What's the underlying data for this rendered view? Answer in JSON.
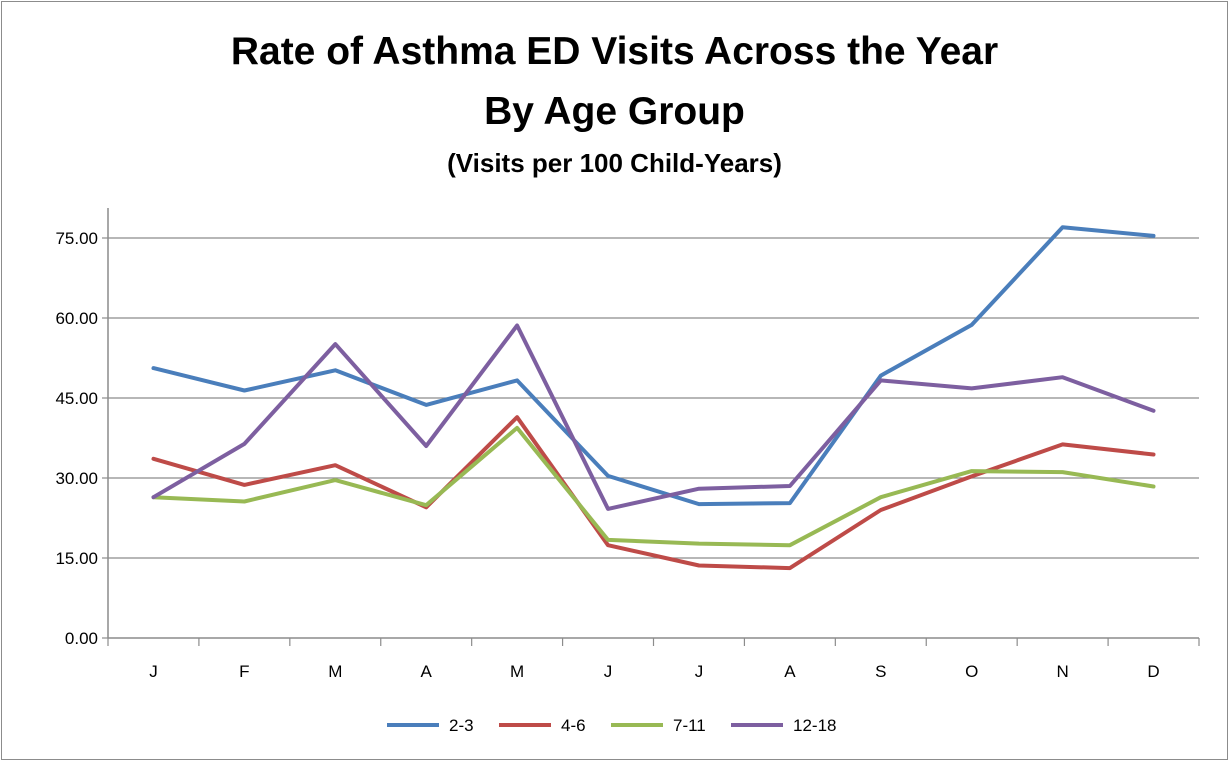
{
  "chart_data": {
    "type": "line",
    "title": "Rate of Asthma ED Visits Across the Year",
    "subtitle_1": "By Age Group",
    "subtitle_2": "(Visits per 100 Child-Years)",
    "categories": [
      "J",
      "F",
      "M",
      "A",
      "M",
      "J",
      "J",
      "A",
      "S",
      "O",
      "N",
      "D"
    ],
    "yticks": [
      "0.00",
      "15.00",
      "30.00",
      "45.00",
      "60.00",
      "75.00"
    ],
    "ylim": [
      0,
      75
    ],
    "grid": true,
    "legend_position": "bottom",
    "series": [
      {
        "name": "2-3",
        "color": "#4a7ebb",
        "values": [
          50.6,
          46.4,
          50.2,
          43.7,
          48.3,
          30.4,
          25.1,
          25.3,
          49.2,
          58.7,
          77.0,
          75.4
        ]
      },
      {
        "name": "4-6",
        "color": "#be4b48",
        "values": [
          33.6,
          28.7,
          32.4,
          24.5,
          41.4,
          17.4,
          13.6,
          13.1,
          24.0,
          30.3,
          36.3,
          34.4
        ]
      },
      {
        "name": "7-11",
        "color": "#98b954",
        "values": [
          26.4,
          25.6,
          29.6,
          24.9,
          39.4,
          18.4,
          17.7,
          17.4,
          26.4,
          31.3,
          31.1,
          28.4
        ]
      },
      {
        "name": "12-18",
        "color": "#7d5fa0",
        "values": [
          26.4,
          36.4,
          55.1,
          36.0,
          58.6,
          24.2,
          28.0,
          28.5,
          48.3,
          46.8,
          48.9,
          42.6
        ]
      }
    ]
  }
}
